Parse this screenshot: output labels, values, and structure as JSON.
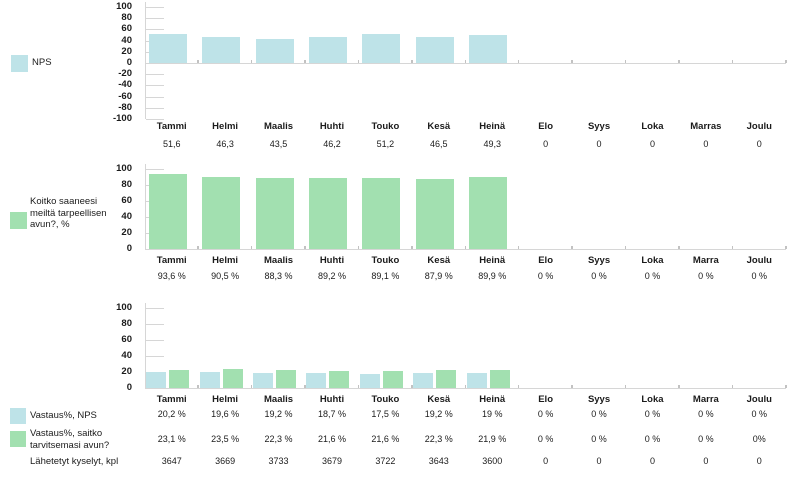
{
  "colors": {
    "blue": "#bee3e8",
    "green": "#a2e0b0",
    "axis": "#d6d6d6",
    "category_tick": "#c2c2c2",
    "text": "#1b1b1b",
    "background": "#ffffff"
  },
  "chart_data": [
    {
      "id": "nps",
      "type": "bar",
      "title": "",
      "xlabel": "",
      "ylabel": "",
      "ylim": [
        -100,
        100
      ],
      "ytick_step": 20,
      "yticks": [
        "100",
        "80",
        "60",
        "40",
        "20",
        "0",
        "-20",
        "-40",
        "-60",
        "-80",
        "-100"
      ],
      "grid": false,
      "legend_position": "left",
      "legend_items": [
        {
          "swatch": "blue",
          "label": "NPS",
          "lines": [
            "NPS"
          ]
        }
      ],
      "categories": [
        "Tammi",
        "Helmi",
        "Maalis",
        "Huhti",
        "Touko",
        "Kesä",
        "Heinä",
        "Elo",
        "Syys",
        "Loka",
        "Marras",
        "Joulu"
      ],
      "series": [
        {
          "name": "NPS",
          "color": "blue",
          "values": [
            51.6,
            46.3,
            43.5,
            46.2,
            51.2,
            46.5,
            49.3,
            0,
            0,
            0,
            0,
            0
          ]
        }
      ],
      "value_rows": [
        {
          "cells": [
            "51,6",
            "46,3",
            "43,5",
            "46,2",
            "51,2",
            "46,5",
            "49,3",
            "0",
            "0",
            "0",
            "0",
            "0"
          ]
        }
      ]
    },
    {
      "id": "help-received",
      "type": "bar",
      "title": "",
      "xlabel": "",
      "ylabel": "",
      "ylim": [
        0,
        100
      ],
      "ytick_step": 20,
      "yticks": [
        "100",
        "80",
        "60",
        "40",
        "20",
        "0"
      ],
      "grid": false,
      "legend_position": "left",
      "legend_items": [
        {
          "swatch": "green",
          "label": "Koitko saaneesi meiltä tarpeellisen avun?, %",
          "lines": [
            "Koitko saaneesi",
            "meiltä tarpeellisen",
            "avun?, %"
          ]
        }
      ],
      "categories": [
        "Tammi",
        "Helmi",
        "Maalis",
        "Huhti",
        "Touko",
        "Kesä",
        "Heinä",
        "Elo",
        "Syys",
        "Loka",
        "Marra",
        "Joulu"
      ],
      "series": [
        {
          "name": "Koitko saaneesi meiltä tarpeellisen avun?, %",
          "color": "green",
          "values": [
            93.6,
            90.5,
            88.3,
            89.2,
            89.1,
            87.9,
            89.9,
            0,
            0,
            0,
            0,
            0
          ]
        }
      ],
      "value_rows": [
        {
          "cells": [
            "93,6 %",
            "90,5 %",
            "88,3 %",
            "89,2 %",
            "89,1 %",
            "87,9 %",
            "89,9 %",
            "0 %",
            "0 %",
            "0 %",
            "0 %",
            "0 %"
          ]
        }
      ]
    },
    {
      "id": "response-rates",
      "type": "bar",
      "title": "",
      "xlabel": "",
      "ylabel": "",
      "ylim": [
        0,
        100
      ],
      "ytick_step": 20,
      "yticks": [
        "100",
        "80",
        "60",
        "40",
        "20",
        "0"
      ],
      "grid": false,
      "legend_position": "left",
      "legend_items": [
        {
          "swatch": "blue",
          "label": "Vastaus%, NPS",
          "lines": [
            "Vastaus%, NPS"
          ]
        },
        {
          "swatch": "green",
          "label": "Vastaus%, saitko tarvitsemasi avun?",
          "lines": [
            "Vastaus%, saitko",
            "tarvitsemasi avun?"
          ]
        },
        {
          "swatch": null,
          "label": "Lähetetyt kyselyt, kpl",
          "lines": [
            "Lähetetyt kyselyt, kpl"
          ]
        }
      ],
      "categories": [
        "Tammi",
        "Helmi",
        "Maalis",
        "Huhti",
        "Touko",
        "Kesä",
        "Heinä",
        "Elo",
        "Syys",
        "Loka",
        "Marra",
        "Joulu"
      ],
      "series": [
        {
          "name": "Vastaus%, NPS",
          "color": "blue",
          "values": [
            20.2,
            19.6,
            19.2,
            18.7,
            17.5,
            19.2,
            19,
            0,
            0,
            0,
            0,
            0
          ]
        },
        {
          "name": "Vastaus%, saitko tarvitsemasi avun?",
          "color": "green",
          "values": [
            23.1,
            23.5,
            22.3,
            21.6,
            21.6,
            22.3,
            21.9,
            0,
            0,
            0,
            0,
            0
          ]
        }
      ],
      "value_rows": [
        {
          "cells": [
            "20,2 %",
            "19,6 %",
            "19,2 %",
            "18,7 %",
            "17,5 %",
            "19,2 %",
            "19 %",
            "0 %",
            "0 %",
            "0 %",
            "0 %",
            "0 %"
          ]
        },
        {
          "cells": [
            "23,1 %",
            "23,5 %",
            "22,3 %",
            "21,6 %",
            "21,6 %",
            "22,3 %",
            "21,9 %",
            "0 %",
            "0 %",
            "0 %",
            "0 %",
            "0%"
          ]
        },
        {
          "cells": [
            "3647",
            "3669",
            "3733",
            "3679",
            "3722",
            "3643",
            "3600",
            "0",
            "0",
            "0",
            "0",
            "0"
          ]
        }
      ]
    }
  ]
}
